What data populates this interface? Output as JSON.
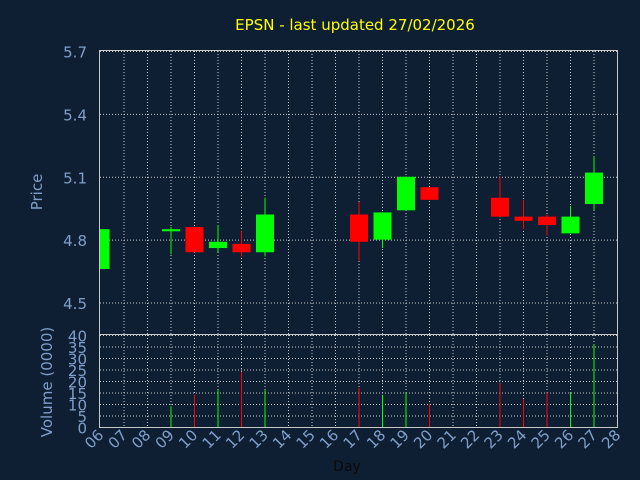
{
  "chart_data": {
    "type": "candlestick",
    "title": "EPSN - last updated 27/02/2026",
    "xlabel": "Day",
    "ylabel_price": "Price",
    "ylabel_volume": "Volume (0000)",
    "price_ylim": [
      4.35,
      5.7
    ],
    "price_ticks": [
      "4.5",
      "4.8",
      "5.1",
      "5.4",
      "5.7"
    ],
    "volume_ylim": [
      0,
      40
    ],
    "volume_ticks": [
      "0",
      "5",
      "10",
      "15",
      "20",
      "25",
      "30",
      "35",
      "40"
    ],
    "x_ticks": [
      "06",
      "07",
      "08",
      "09",
      "10",
      "11",
      "12",
      "13",
      "14",
      "15",
      "16",
      "17",
      "18",
      "19",
      "20",
      "21",
      "22",
      "23",
      "24",
      "25",
      "26",
      "27",
      "28"
    ],
    "grid": true,
    "up_color": "#00ff00",
    "down_color": "#ff0000",
    "candles": [
      {
        "day": "06",
        "open": 4.66,
        "close": 4.85,
        "high": 4.85,
        "low": 4.66,
        "volume": 0
      },
      {
        "day": "09",
        "open": 4.84,
        "close": 4.85,
        "high": 4.86,
        "low": 4.73,
        "volume": 9
      },
      {
        "day": "10",
        "open": 4.86,
        "close": 4.74,
        "high": 4.86,
        "low": 4.74,
        "volume": 14
      },
      {
        "day": "11",
        "open": 4.76,
        "close": 4.79,
        "high": 4.87,
        "low": 4.74,
        "volume": 16
      },
      {
        "day": "12",
        "open": 4.78,
        "close": 4.74,
        "high": 4.84,
        "low": 4.72,
        "volume": 24
      },
      {
        "day": "13",
        "open": 4.74,
        "close": 4.92,
        "high": 5.0,
        "low": 4.72,
        "volume": 16
      },
      {
        "day": "17",
        "open": 4.92,
        "close": 4.79,
        "high": 4.98,
        "low": 4.7,
        "volume": 17
      },
      {
        "day": "18",
        "open": 4.8,
        "close": 4.93,
        "high": 4.93,
        "low": 4.76,
        "volume": 14
      },
      {
        "day": "19",
        "open": 4.94,
        "close": 5.1,
        "high": 5.1,
        "low": 4.94,
        "volume": 15
      },
      {
        "day": "20",
        "open": 5.05,
        "close": 4.99,
        "high": 5.05,
        "low": 4.99,
        "volume": 10
      },
      {
        "day": "23",
        "open": 5.0,
        "close": 4.91,
        "high": 5.1,
        "low": 4.91,
        "volume": 19
      },
      {
        "day": "24",
        "open": 4.91,
        "close": 4.89,
        "high": 4.99,
        "low": 4.85,
        "volume": 12
      },
      {
        "day": "25",
        "open": 4.91,
        "close": 4.87,
        "high": 4.92,
        "low": 4.82,
        "volume": 15
      },
      {
        "day": "26",
        "open": 4.83,
        "close": 4.91,
        "high": 4.96,
        "low": 4.83,
        "volume": 15
      },
      {
        "day": "27",
        "open": 4.97,
        "close": 5.12,
        "high": 5.2,
        "low": 4.94,
        "volume": 36
      }
    ]
  }
}
